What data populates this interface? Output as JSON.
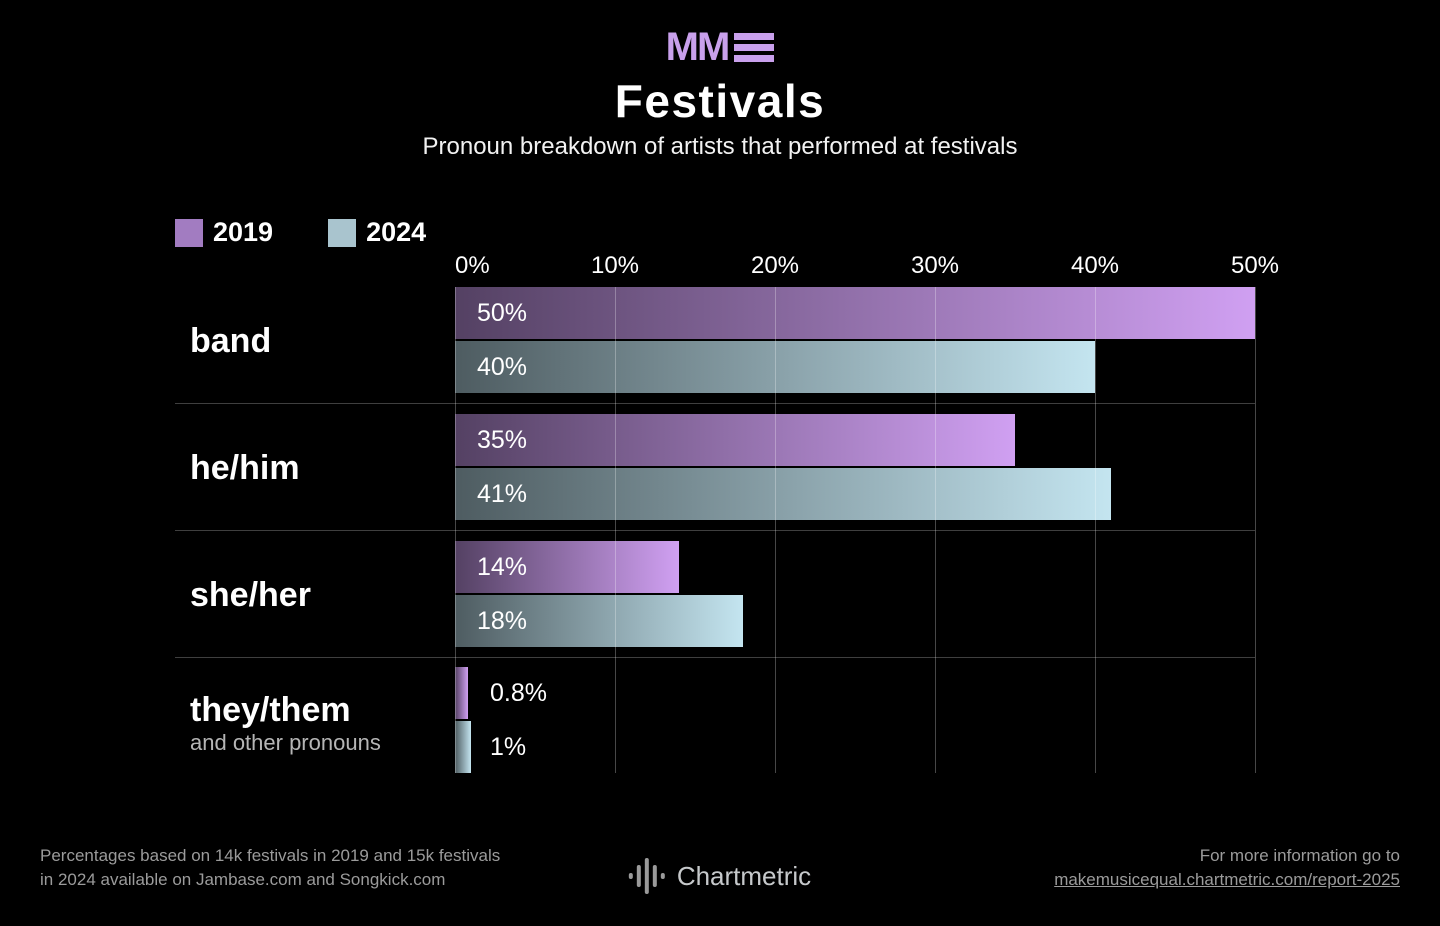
{
  "header": {
    "logo_text": "MM",
    "title": "Festivals",
    "subtitle": "Pronoun breakdown of artists that performed at festivals"
  },
  "colors": {
    "background": "#000000",
    "brand_purple": "#c9a0ec",
    "purple_bar_start": "#544163",
    "purple_bar_end": "#d0a0f2",
    "teal_bar_start": "#4e5c61",
    "teal_bar_end": "#c4e5f0",
    "legend_2019": "#a27cc1",
    "legend_2024": "#a9c4ce",
    "grid": "rgba(255,255,255,0.28)",
    "separator": "#3f3f3f",
    "footer_text": "#9b9b9b"
  },
  "chart_data": {
    "type": "bar",
    "orientation": "horizontal",
    "title": "Festivals",
    "subtitle": "Pronoun breakdown of artists that performed at festivals",
    "categories": [
      "band",
      "he/him",
      "she/her",
      "they/them"
    ],
    "category_subtexts": [
      "",
      "",
      "",
      "and other pronouns"
    ],
    "series": [
      {
        "name": "2019",
        "values": [
          50,
          35,
          14,
          0.8
        ],
        "labels": [
          "50%",
          "35%",
          "14%",
          "0.8%"
        ]
      },
      {
        "name": "2024",
        "values": [
          40,
          41,
          18,
          1
        ],
        "labels": [
          "40%",
          "41%",
          "18%",
          "1%"
        ]
      }
    ],
    "x_ticks": [
      "0%",
      "10%",
      "20%",
      "30%",
      "40%",
      "50%"
    ],
    "xlim": [
      0,
      50
    ],
    "grid": true,
    "legend_position": "top-left"
  },
  "footer": {
    "note_line1": "Percentages based on 14k festivals in 2019 and 15k festivals",
    "note_line2": "in 2024 available on Jambase.com and Songkick.com",
    "brand": "Chartmetric",
    "info_line1": "For more information go to",
    "info_link": "makemusicequal.chartmetric.com/report-2025"
  }
}
